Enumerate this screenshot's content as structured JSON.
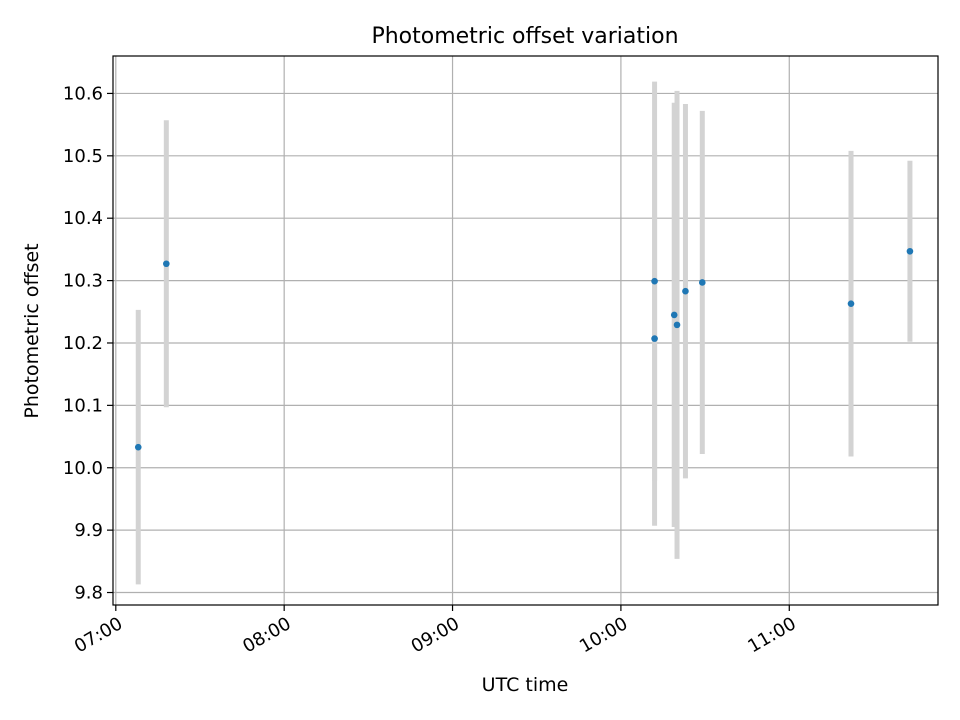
{
  "chart_data": {
    "type": "scatter",
    "title": "Photometric offset variation",
    "xlabel": "UTC time",
    "ylabel": "Photometric offset",
    "x_type": "time",
    "xlim": [
      "06:59",
      "11:53"
    ],
    "ylim": [
      9.78,
      10.66
    ],
    "x_ticks": [
      "07:00",
      "08:00",
      "09:00",
      "10:00",
      "11:00"
    ],
    "y_ticks": [
      9.8,
      9.9,
      10.0,
      10.1,
      10.2,
      10.3,
      10.4,
      10.5,
      10.6
    ],
    "y_tick_labels": [
      "9.8",
      "9.9",
      "10.0",
      "10.1",
      "10.2",
      "10.3",
      "10.4",
      "10.5",
      "10.6"
    ],
    "grid": true,
    "legend": null,
    "colors": {
      "points": "#1f77b4",
      "error_bars": "#d3d3d3",
      "grid": "#b0b0b0"
    },
    "points": [
      {
        "x": "07:08",
        "y": 10.033,
        "yerr": 0.22
      },
      {
        "x": "07:18",
        "y": 10.327,
        "yerr": 0.23
      },
      {
        "x": "10:12",
        "y": 10.207,
        "yerr": 0.3
      },
      {
        "x": "10:12",
        "y": 10.299,
        "yerr": 0.32
      },
      {
        "x": "10:19",
        "y": 10.245,
        "yerr": 0.34
      },
      {
        "x": "10:20",
        "y": 10.229,
        "yerr": 0.375
      },
      {
        "x": "10:23",
        "y": 10.283,
        "yerr": 0.3
      },
      {
        "x": "10:29",
        "y": 10.297,
        "yerr": 0.275
      },
      {
        "x": "11:22",
        "y": 10.263,
        "yerr": 0.245
      },
      {
        "x": "11:43",
        "y": 10.347,
        "yerr": 0.145
      }
    ]
  }
}
